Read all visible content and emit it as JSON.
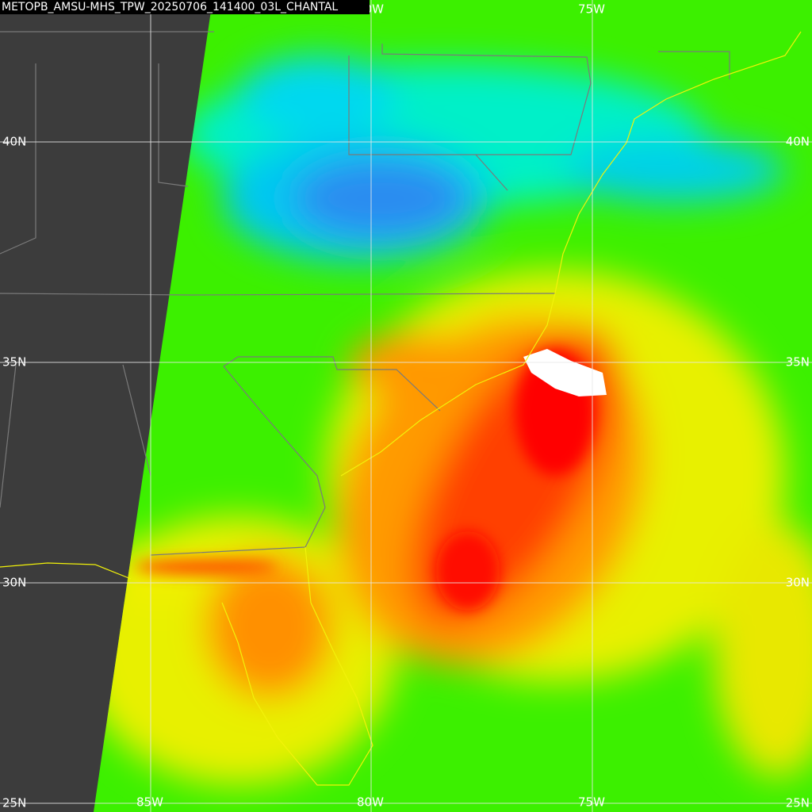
{
  "title": "METOPB_AMSU-MHS_TPW_20250706_141400_03L_CHANTAL",
  "lat_labels": [
    "40N",
    "35N",
    "30N",
    "25N"
  ],
  "lon_labels": [
    "85W",
    "80W",
    "75W"
  ]
}
